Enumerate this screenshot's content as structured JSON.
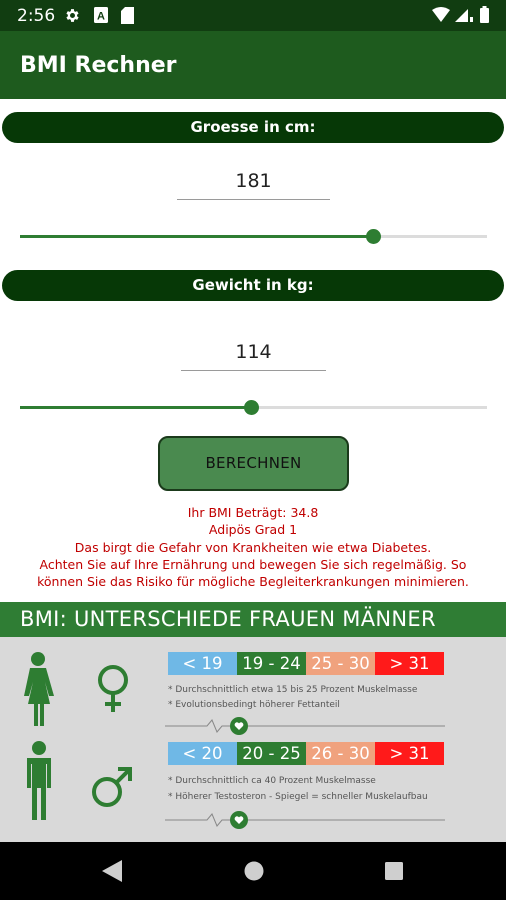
{
  "status_bar": {
    "time": "2:56"
  },
  "app": {
    "title": "BMI Rechner"
  },
  "height": {
    "header": "Groesse in cm:",
    "value": "181",
    "slider_fraction": 0.755
  },
  "weight": {
    "header": "Gewicht in kg:",
    "value": "114",
    "slider_fraction": 0.495
  },
  "calculate_button": "BERECHNEN",
  "result": {
    "line1": "Ihr BMI Beträgt: 34.8",
    "line2": "Adipös Grad 1",
    "line3": "Das birgt die Gefahr von Krankheiten wie etwa Diabetes.",
    "line4": "Achten Sie auf Ihre Ernährung und bewegen Sie sich regelmäßig. So",
    "line5": "können Sie das Risiko für mögliche Begleiterkrankungen minimieren."
  },
  "compare": {
    "title": "BMI: UNTERSCHIEDE FRAUEN MÄNNER",
    "women": {
      "ranges": [
        "< 19",
        "19 - 24",
        "25 - 30",
        "> 31"
      ],
      "notes": [
        "* Durchschnittlich etwa 15 bis 25 Prozent Muskelmasse",
        "* Evolutionsbedingt höherer Fettanteil"
      ]
    },
    "men": {
      "ranges": [
        "< 20",
        "20 - 25",
        "26 - 30",
        "> 31"
      ],
      "notes": [
        "* Durchschnittlich ca 40 Prozent Muskelmasse",
        "* Höherer Testosteron - Spiegel = schneller Muskelaufbau"
      ]
    }
  },
  "colors": {
    "accent": "#2e7d32",
    "appbar": "#1e5b1e",
    "status": "#113d11",
    "result_text": "#c00000"
  }
}
